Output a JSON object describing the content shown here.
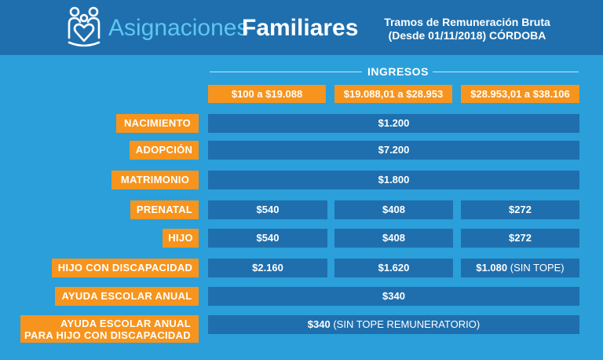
{
  "header": {
    "title_light": "Asignaciones",
    "title_bold": "Familiares",
    "subtitle_line1": "Tramos de Remuneración Bruta",
    "subtitle_line2": "(Desde 01/11/2018) CÓRDOBA",
    "logo_icon": "family-heart-icon"
  },
  "income": {
    "label": "INGRESOS",
    "ranges": [
      "$100 a $19.088",
      "$19.088,01 a $28.953",
      "$28.953,01 a $38.106"
    ]
  },
  "rows": {
    "nacimiento": {
      "label": "NACIMIENTO",
      "value": "$1.200"
    },
    "adopcion": {
      "label": "ADOPCIÓN",
      "value": "$7.200"
    },
    "matrimonio": {
      "label": "MATRIMONIO",
      "value": "$1.800"
    },
    "prenatal": {
      "label": "PRENATAL",
      "values": [
        "$540",
        "$408",
        "$272"
      ]
    },
    "hijo": {
      "label": "HIJO",
      "values": [
        "$540",
        "$408",
        "$272"
      ]
    },
    "hijo_discapacidad": {
      "label": "HIJO CON DISCAPACIDAD",
      "values": [
        "$2.160",
        "$1.620",
        "$1.080"
      ],
      "note": "(SIN TOPE)"
    },
    "ayuda_escolar": {
      "label": "AYUDA ESCOLAR ANUAL",
      "value": "$340"
    },
    "ayuda_escolar_discapacidad": {
      "label_line1": "AYUDA ESCOLAR ANUAL",
      "label_line2": "PARA HIJO CON DISCAPACIDAD",
      "value": "$340",
      "note": "(SIN TOPE REMUNERATORIO)"
    }
  },
  "colors": {
    "background": "#2b9fd9",
    "header": "#1f6fae",
    "accent": "#f7941d",
    "cell": "#1f6fae",
    "title_light": "#5ec7f2"
  }
}
